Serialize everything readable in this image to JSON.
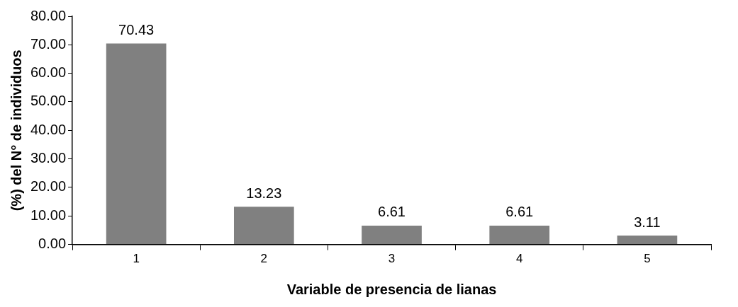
{
  "chart_data": {
    "type": "bar",
    "xlabel": "Variable de presencia de lianas",
    "ylabel": "(%) del N° de individuos",
    "categories": [
      "1",
      "2",
      "3",
      "4",
      "5"
    ],
    "values": [
      70.43,
      13.23,
      6.61,
      6.61,
      3.11
    ],
    "color": "#808080",
    "ylim": [
      0,
      80
    ],
    "yticks": [
      {
        "value": 0,
        "label": "0.00"
      },
      {
        "value": 10,
        "label": "10.00"
      },
      {
        "value": 20,
        "label": "20.00"
      },
      {
        "value": 30,
        "label": "30.00"
      },
      {
        "value": 40,
        "label": "40.00"
      },
      {
        "value": 50,
        "label": "50.00"
      },
      {
        "value": 60,
        "label": "60.00"
      },
      {
        "value": 70,
        "label": "70.00"
      },
      {
        "value": 80,
        "label": "80.00"
      }
    ],
    "grid": false,
    "legend": false,
    "data_labels": true
  }
}
